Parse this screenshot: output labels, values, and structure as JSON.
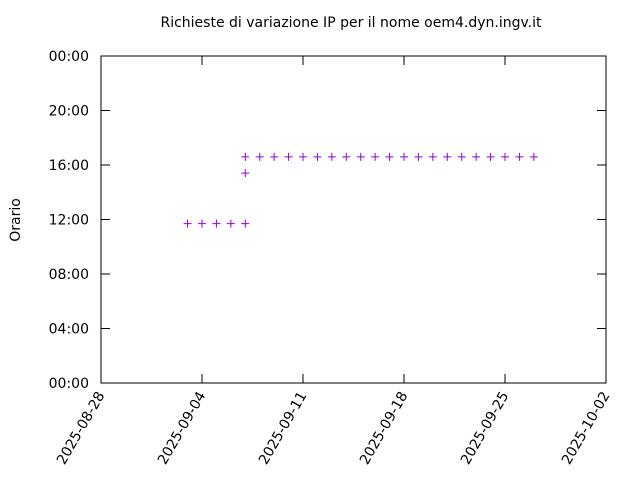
{
  "chart_data": {
    "type": "scatter",
    "title": "Richieste di variazione IP per il nome oem4.dyn.ingv.it",
    "y_label": "Orario",
    "x": [
      "2025-09-03",
      "2025-09-04",
      "2025-09-05",
      "2025-09-06",
      "2025-09-07",
      "2025-09-07",
      "2025-09-07",
      "2025-09-08",
      "2025-09-09",
      "2025-09-10",
      "2025-09-11",
      "2025-09-12",
      "2025-09-13",
      "2025-09-14",
      "2025-09-15",
      "2025-09-16",
      "2025-09-17",
      "2025-09-18",
      "2025-09-19",
      "2025-09-20",
      "2025-09-21",
      "2025-09-22",
      "2025-09-23",
      "2025-09-24",
      "2025-09-25",
      "2025-09-26",
      "2025-09-27"
    ],
    "values": [
      11.7,
      11.7,
      11.7,
      11.7,
      11.7,
      15.4,
      16.6,
      16.6,
      16.6,
      16.6,
      16.6,
      16.6,
      16.6,
      16.6,
      16.6,
      16.6,
      16.6,
      16.6,
      16.6,
      16.6,
      16.6,
      16.6,
      16.6,
      16.6,
      16.6,
      16.6,
      16.6
    ],
    "color": "#9400d3",
    "marker": "+",
    "xlim": [
      "2025-08-28",
      "2025-10-02"
    ],
    "xticks": [
      "2025-08-28",
      "2025-09-04",
      "2025-09-11",
      "2025-09-18",
      "2025-09-25",
      "2025-10-02"
    ],
    "ylim": [
      0,
      24
    ],
    "yticks": [
      {
        "value": 0,
        "label": "00:00"
      },
      {
        "value": 4,
        "label": "04:00"
      },
      {
        "value": 8,
        "label": "08:00"
      },
      {
        "value": 12,
        "label": "12:00"
      },
      {
        "value": 16,
        "label": "16:00"
      },
      {
        "value": 20,
        "label": "20:00"
      },
      {
        "value": 24,
        "label": "00:00"
      }
    ]
  }
}
